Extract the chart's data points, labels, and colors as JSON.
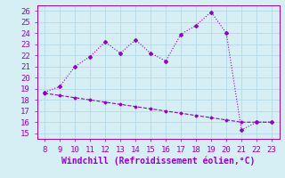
{
  "x_upper": [
    8,
    9,
    10,
    11,
    12,
    13,
    14,
    15,
    16,
    17,
    18,
    19,
    20,
    21,
    22,
    23
  ],
  "y_upper": [
    18.7,
    19.2,
    21.0,
    21.9,
    23.2,
    22.2,
    23.4,
    22.2,
    21.5,
    23.9,
    24.7,
    25.9,
    24.0,
    15.3,
    16.0,
    16.0
  ],
  "x_lower": [
    8,
    9,
    10,
    11,
    12,
    13,
    14,
    15,
    16,
    17,
    18,
    19,
    20,
    21,
    22,
    23
  ],
  "y_lower": [
    18.6,
    18.4,
    18.2,
    18.0,
    17.8,
    17.6,
    17.4,
    17.2,
    17.0,
    16.8,
    16.6,
    16.4,
    16.2,
    16.0,
    16.0,
    16.0
  ],
  "line_color": "#9400D3",
  "bg_color": "#d5eff5",
  "grid_color": "#b8dce8",
  "xlabel": "Windchill (Refroidissement éolien,°C)",
  "xlim": [
    7.5,
    23.5
  ],
  "ylim": [
    14.5,
    26.5
  ],
  "xticks": [
    8,
    9,
    10,
    11,
    12,
    13,
    14,
    15,
    16,
    17,
    18,
    19,
    20,
    21,
    22,
    23
  ],
  "yticks": [
    15,
    16,
    17,
    18,
    19,
    20,
    21,
    22,
    23,
    24,
    25,
    26
  ],
  "xlabel_color": "#9400D3",
  "tick_color": "#9400D3",
  "tick_fontsize": 6.5,
  "xlabel_fontsize": 7.0
}
